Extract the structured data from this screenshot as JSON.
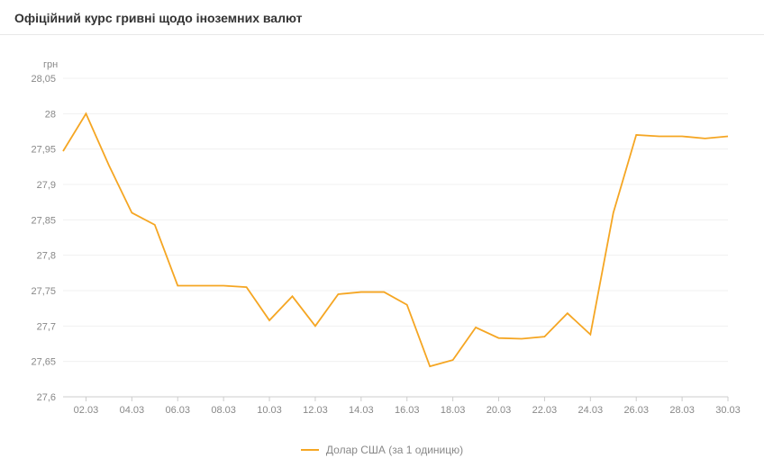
{
  "title": "Офіційний курс гривні щодо іноземних валют",
  "chart": {
    "type": "line",
    "y_unit_label": "грн",
    "series_color": "#f5a623",
    "background_color": "#ffffff",
    "grid_color": "#f0f0f0",
    "axis_line_color": "#cccccc",
    "text_color": "#888888",
    "title_color": "#333333",
    "line_width": 1.8,
    "ylim": [
      27.6,
      28.05
    ],
    "ytick_step": 0.05,
    "yticks": [
      "28,05",
      "28",
      "27,95",
      "27,9",
      "27,85",
      "27,8",
      "27,75",
      "27,7",
      "27,65",
      "27,6"
    ],
    "ytick_values": [
      28.05,
      28.0,
      27.95,
      27.9,
      27.85,
      27.8,
      27.75,
      27.7,
      27.65,
      27.6
    ],
    "xticks": [
      "02.03",
      "04.03",
      "06.03",
      "08.03",
      "10.03",
      "12.03",
      "14.03",
      "16.03",
      "18.03",
      "20.03",
      "22.03",
      "24.03",
      "26.03",
      "28.03",
      "30.03"
    ],
    "x_categories": [
      "01.03",
      "02.03",
      "03.03",
      "04.03",
      "05.03",
      "06.03",
      "07.03",
      "08.03",
      "09.03",
      "10.03",
      "11.03",
      "12.03",
      "13.03",
      "14.03",
      "15.03",
      "16.03",
      "17.03",
      "18.03",
      "19.03",
      "20.03",
      "21.03",
      "22.03",
      "23.03",
      "24.03",
      "25.03",
      "26.03",
      "27.03",
      "28.03",
      "29.03",
      "30.03"
    ],
    "y_values": [
      27.947,
      28.0,
      27.927,
      27.86,
      27.843,
      27.757,
      27.757,
      27.757,
      27.755,
      27.708,
      27.742,
      27.7,
      27.745,
      27.748,
      27.748,
      27.73,
      27.643,
      27.652,
      27.698,
      27.683,
      27.682,
      27.685,
      27.718,
      27.688,
      27.86,
      27.97,
      27.968,
      27.968,
      27.965,
      27.968
    ],
    "legend_label": "Долар США (за 1 одиницю)",
    "title_fontsize": 14,
    "label_fontsize": 11
  }
}
